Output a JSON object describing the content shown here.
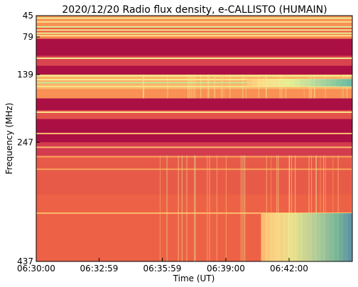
{
  "chart_data": {
    "type": "heatmap",
    "title": "2020/12/20  Radio flux density, e-CALLISTO (HUMAIN)",
    "xlabel": "Time (UT)",
    "ylabel": "Frequency (MHz)",
    "x_ticks": [
      "06:30:00",
      "06:32:59",
      "06:35:59",
      "06:39:00",
      "06:42:00"
    ],
    "x_tick_seconds": [
      0,
      179,
      359,
      540,
      720
    ],
    "x_range_seconds": [
      0,
      900
    ],
    "y_ticks": [
      45,
      79,
      139,
      247,
      437
    ],
    "y_range": [
      45,
      437
    ],
    "y_inverted": true,
    "grid": false,
    "colormap": [
      "#9e0142",
      "#d53e4f",
      "#f46d43",
      "#fdae61",
      "#fee08b",
      "#e6f598",
      "#abdda4",
      "#66c2a5",
      "#3288bd"
    ],
    "frequency_bands": [
      {
        "from": 45,
        "to": 63,
        "level": 0.32
      },
      {
        "from": 63,
        "to": 75,
        "level": 0.22
      },
      {
        "from": 75,
        "to": 82,
        "level": 0.3
      },
      {
        "from": 82,
        "to": 109,
        "level": 0.03
      },
      {
        "from": 109,
        "to": 125,
        "level": 0.14
      },
      {
        "from": 125,
        "to": 139,
        "level": 0.03
      },
      {
        "from": 139,
        "to": 163,
        "level": 0.38
      },
      {
        "from": 163,
        "to": 177,
        "level": 0.32
      },
      {
        "from": 177,
        "to": 196,
        "level": 0.03
      },
      {
        "from": 196,
        "to": 210,
        "level": 0.18
      },
      {
        "from": 210,
        "to": 247,
        "level": 0.03
      },
      {
        "from": 247,
        "to": 268,
        "level": 0.12
      },
      {
        "from": 268,
        "to": 330,
        "level": 0.2
      },
      {
        "from": 330,
        "to": 437,
        "level": 0.22
      }
    ],
    "bright_lines_mhz": [
      {
        "f": 49,
        "level": 0.6
      },
      {
        "f": 55,
        "level": 0.5
      },
      {
        "f": 63,
        "level": 0.65
      },
      {
        "f": 68,
        "level": 0.55
      },
      {
        "f": 73,
        "level": 0.6
      },
      {
        "f": 77,
        "level": 0.5
      },
      {
        "f": 113,
        "level": 0.55
      },
      {
        "f": 141,
        "level": 0.6
      },
      {
        "f": 147,
        "level": 0.55
      },
      {
        "f": 152,
        "level": 0.7
      },
      {
        "f": 158,
        "level": 0.55
      },
      {
        "f": 199,
        "level": 0.5
      },
      {
        "f": 233,
        "level": 0.4
      },
      {
        "f": 255,
        "level": 0.4
      },
      {
        "f": 270,
        "level": 0.35
      },
      {
        "f": 290,
        "level": 0.35
      },
      {
        "f": 360,
        "level": 0.4
      }
    ],
    "bursts": [
      {
        "t_start": 600,
        "t_end": 900,
        "f_low": 146,
        "f_high": 158,
        "peak_level": 0.9
      },
      {
        "t_start": 640,
        "t_end": 900,
        "f_low": 360,
        "f_high": 437,
        "peak_level": 0.95
      }
    ]
  }
}
